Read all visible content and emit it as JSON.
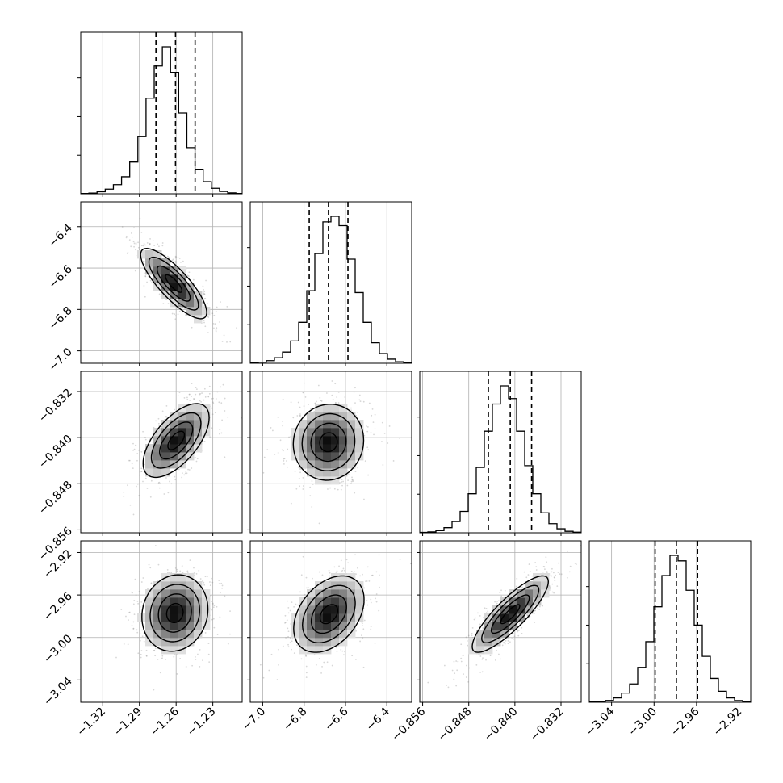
{
  "chart_data": {
    "type": "corner",
    "grid": true,
    "parameters": [
      {
        "id": "p0",
        "range": [
          -1.338,
          -1.206
        ],
        "ticks": [
          "−1.32",
          "−1.29",
          "−1.26",
          "−1.23"
        ],
        "tick_values": [
          -1.32,
          -1.29,
          -1.26,
          -1.23
        ],
        "quantiles": [
          -1.2765,
          -1.2605,
          -1.2445
        ],
        "hist_bin_edges": [
          -1.338,
          -1.2045
        ],
        "hist_counts": [
          2,
          5,
          14,
          32,
          63,
          118,
          220,
          396,
          662,
          886,
          1019,
          842,
          560,
          320,
          170,
          84,
          38,
          16,
          6,
          2
        ]
      },
      {
        "id": "p1",
        "range": [
          -7.06,
          -6.28
        ],
        "ticks": [
          "−7.0",
          "−6.8",
          "−6.6",
          "−6.4"
        ],
        "tick_values": [
          -7.0,
          -6.8,
          -6.6,
          -6.4
        ],
        "quantiles": [
          -6.775,
          -6.682,
          -6.588
        ],
        "hist_bin_edges": [
          -7.06,
          -6.28
        ],
        "hist_counts": [
          2,
          6,
          14,
          30,
          60,
          120,
          220,
          390,
          590,
          760,
          790,
          740,
          560,
          380,
          220,
          110,
          52,
          22,
          8,
          3
        ]
      },
      {
        "id": "p2",
        "range": [
          -0.8565,
          -0.8285
        ],
        "ticks": [
          "−0.856",
          "−0.848",
          "−0.840",
          "−0.832"
        ],
        "tick_values": [
          -0.856,
          -0.848,
          -0.84,
          -0.832
        ],
        "quantiles": [
          -0.8446,
          -0.8408,
          -0.8371
        ],
        "hist_bin_edges": [
          -0.8565,
          -0.8285
        ],
        "hist_counts": [
          2,
          5,
          12,
          28,
          62,
          118,
          215,
          360,
          560,
          710,
          810,
          740,
          560,
          370,
          215,
          110,
          50,
          22,
          8,
          3
        ]
      },
      {
        "id": "p3",
        "range": [
          -3.061,
          -2.909
        ],
        "ticks": [
          "−3.04",
          "−3.00",
          "−2.96",
          "−2.92"
        ],
        "tick_values": [
          -3.04,
          -3.0,
          -2.96,
          -2.92
        ],
        "quantiles": [
          -2.999,
          -2.979,
          -2.959
        ],
        "hist_bin_edges": [
          -3.061,
          -2.909
        ],
        "hist_counts": [
          2,
          4,
          10,
          24,
          50,
          100,
          190,
          330,
          520,
          690,
          800,
          770,
          610,
          420,
          250,
          130,
          60,
          24,
          9,
          3
        ]
      }
    ],
    "pair_panels": [
      {
        "x": "p0",
        "y": "p1",
        "center": [
          -1.262,
          -6.675
        ],
        "sigma": [
          0.0135,
          0.085
        ],
        "rho": -0.82
      },
      {
        "x": "p0",
        "y": "p2",
        "center": [
          -1.26,
          -0.8405
        ],
        "sigma": [
          0.0135,
          0.0032
        ],
        "rho": 0.62
      },
      {
        "x": "p1",
        "y": "p2",
        "center": [
          -6.682,
          -0.8408
        ],
        "sigma": [
          0.085,
          0.0033
        ],
        "rho": 0.05
      },
      {
        "x": "p0",
        "y": "p3",
        "center": [
          -1.261,
          -2.977
        ],
        "sigma": [
          0.0135,
          0.018
        ],
        "rho": 0.1
      },
      {
        "x": "p1",
        "y": "p3",
        "center": [
          -6.68,
          -2.978
        ],
        "sigma": [
          0.085,
          0.018
        ],
        "rho": 0.38
      },
      {
        "x": "p2",
        "y": "p3",
        "center": [
          -0.8408,
          -2.978
        ],
        "sigma": [
          0.0033,
          0.018
        ],
        "rho": 0.85
      }
    ],
    "contour_levels_sigma": [
      0.5,
      1.0,
      1.5,
      2.0
    ],
    "colors": {
      "line": "#000000",
      "grid": "#b0b0b0",
      "points": "#8c8c8c"
    }
  }
}
